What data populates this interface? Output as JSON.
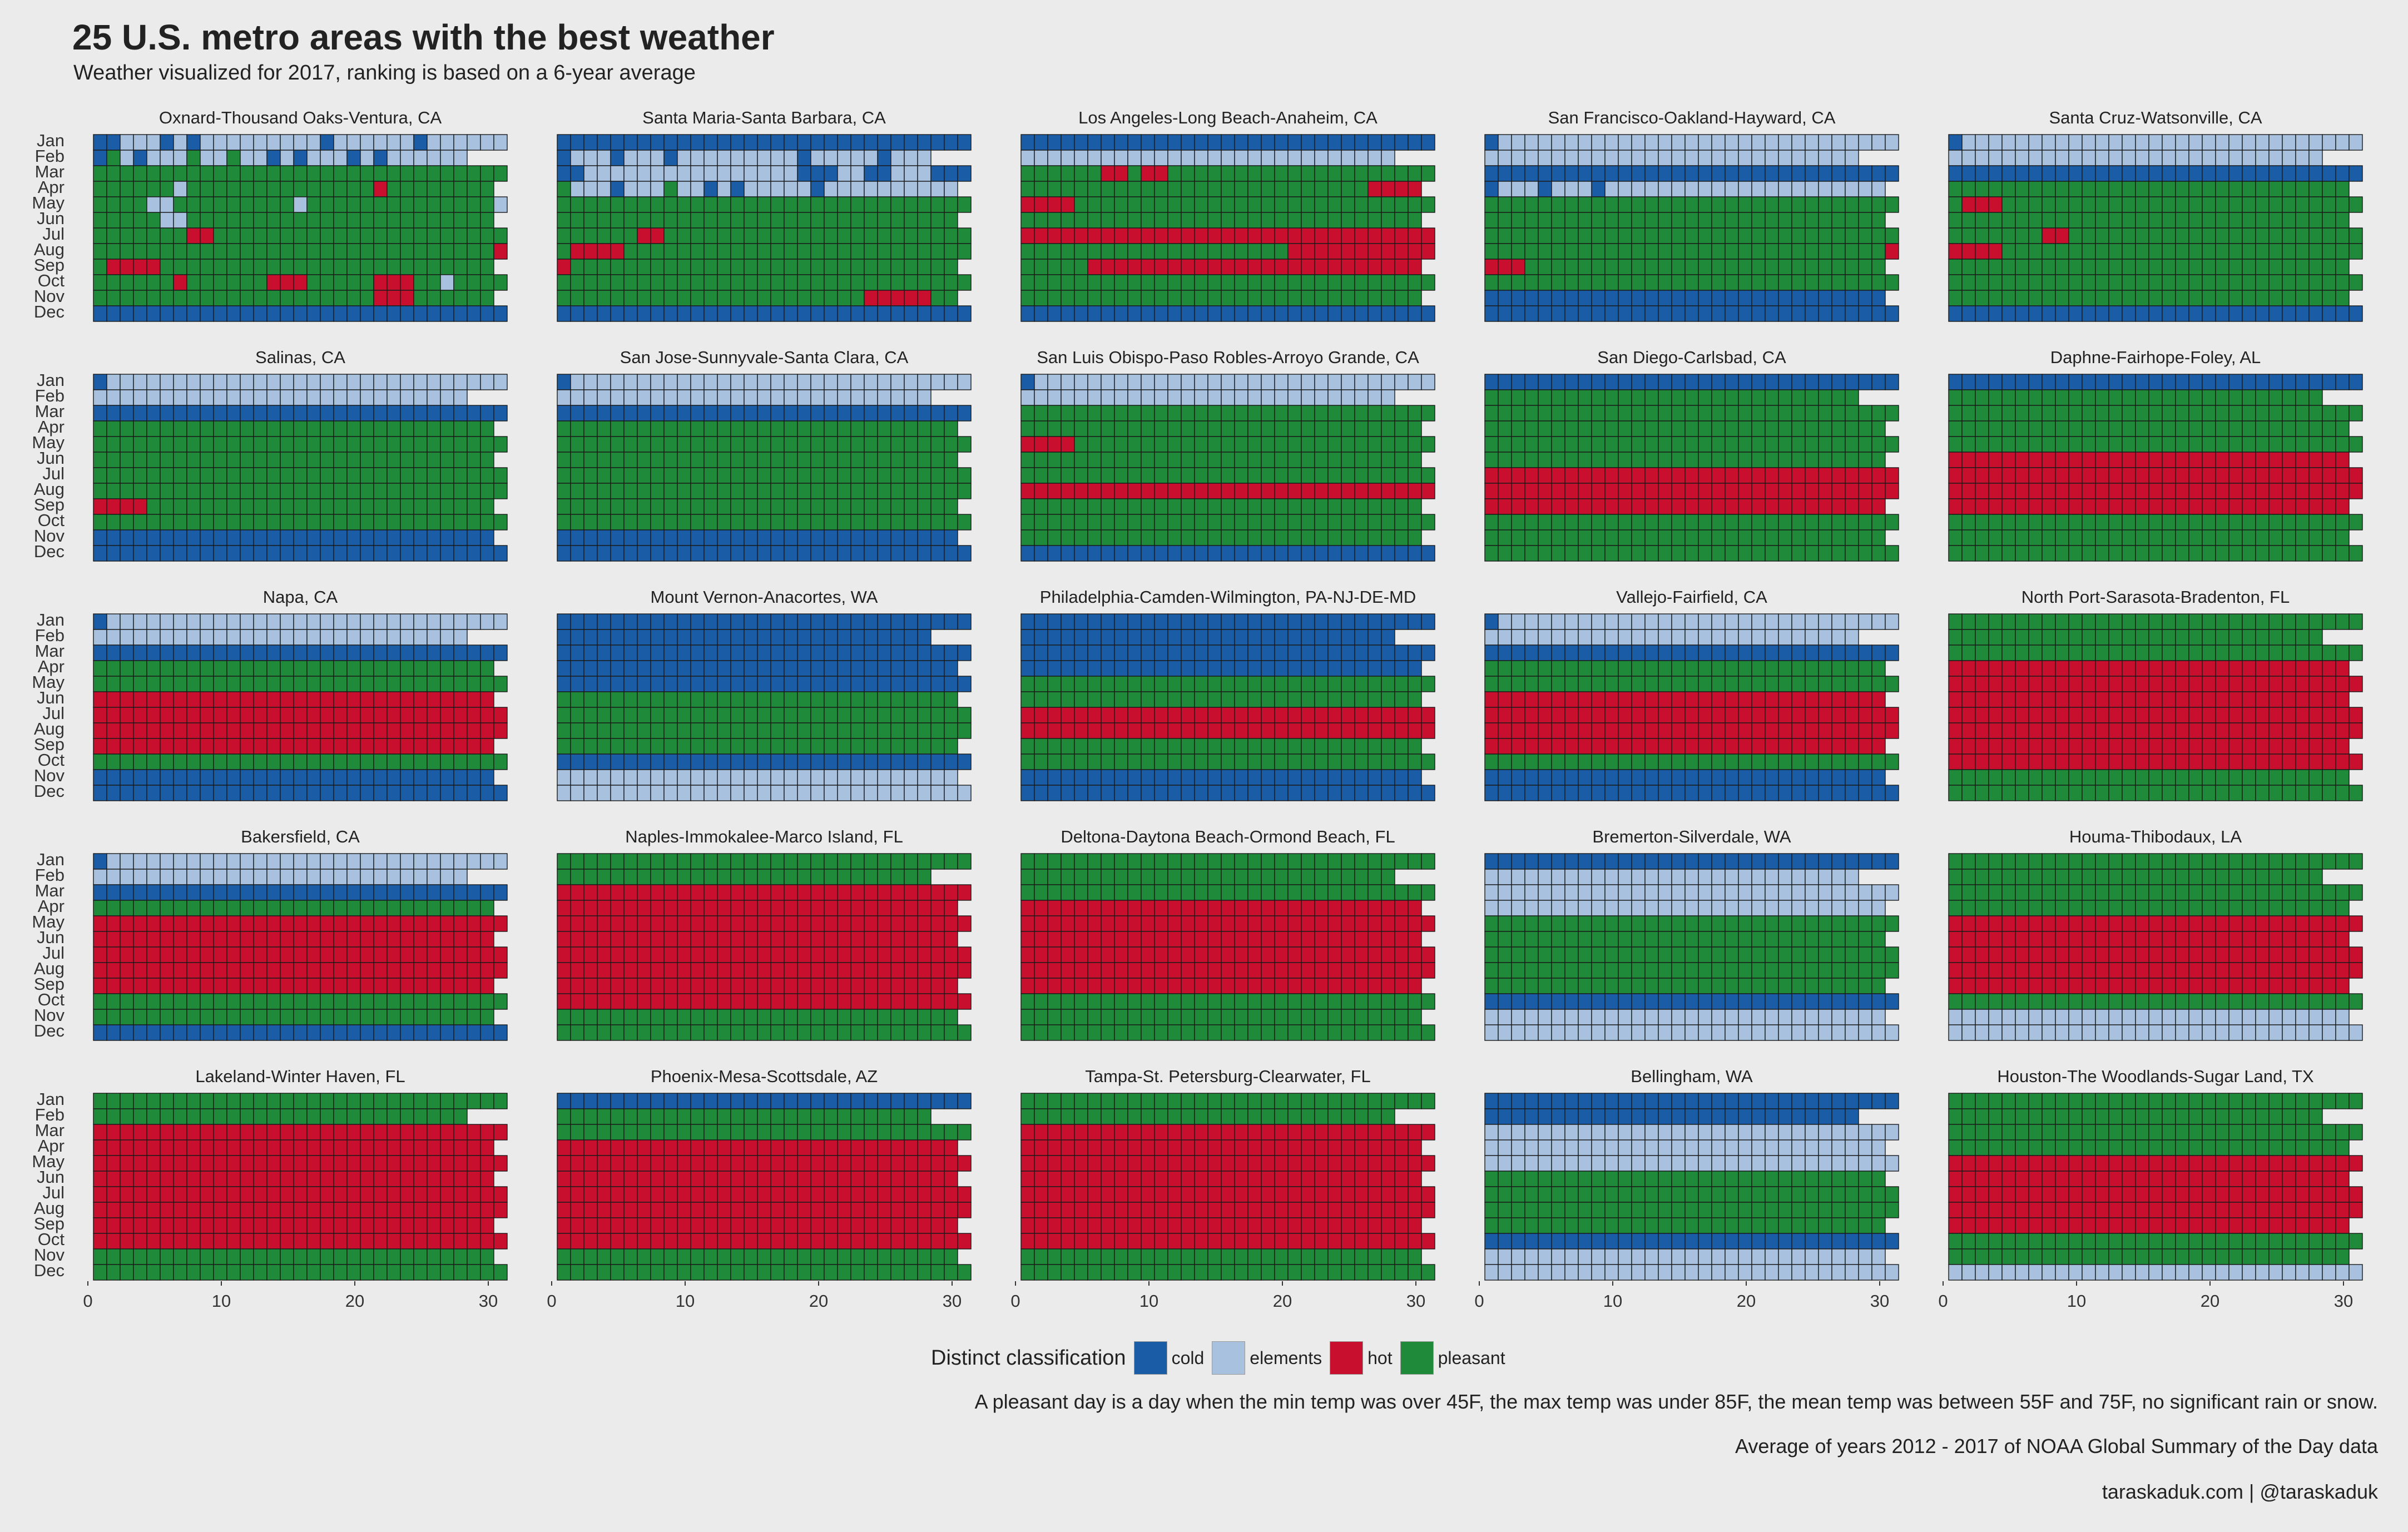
{
  "title": "25 U.S. metro areas with the best weather",
  "subtitle": "Weather visualized for 2017, ranking is based on a 6-year average",
  "legend": {
    "title": "Distinct classification",
    "items": [
      {
        "label": "cold",
        "color": "#1a5da6"
      },
      {
        "label": "elements",
        "color": "#a8c1df"
      },
      {
        "label": "hot",
        "color": "#c8102e"
      },
      {
        "label": "pleasant",
        "color": "#1f8a3a"
      }
    ]
  },
  "caption_lines": [
    "A pleasant day is a day when the min temp was over 45F, the max temp was under 85F, the mean temp was between 55F and 75F, no significant rain or snow.",
    "Average of years 2012 - 2017 of NOAA Global Summary of the Day data",
    "taraskaduk.com | @taraskaduk"
  ],
  "chart_data": {
    "type": "heatmap",
    "title": "25 U.S. metro areas with the best weather",
    "subtitle": "Weather visualized for 2017, ranking is based on a 6-year average",
    "x_ticks": [
      0,
      10,
      20,
      30
    ],
    "xlim": [
      0,
      31
    ],
    "months": [
      "Jan",
      "Feb",
      "Mar",
      "Apr",
      "May",
      "Jun",
      "Jul",
      "Aug",
      "Sep",
      "Oct",
      "Nov",
      "Dec"
    ],
    "month_lengths": [
      31,
      28,
      31,
      30,
      31,
      30,
      31,
      31,
      30,
      31,
      30,
      31
    ],
    "class_codes": {
      "C": "cold",
      "E": "elements",
      "H": "hot",
      "P": "pleasant"
    },
    "panels": [
      {
        "name": "Oxnard-Thousand Oaks-Ventura, CA",
        "days": [
          "CCEEECECEEEEEEEEECEEEEEECEEEEEE",
          "CPECEEEPEEPEECECEEECECEEEEEEE",
          "PPPPPPPPPPPPPPPPPPPPPPPPPPPPPPP",
          "PPPPPPEPPPPPPPPPPPPPPHPPPPPPPPP",
          "PPPPEEPPPPPPPPPEPPPPPPPPPPPPPPE",
          "PPPPPEEPPPPPPPPPPPPPPPPPPPPPPPP",
          "PPPPPPPHHPPPPPPPPPPPPPPPPPPPPPP",
          "PPPPPPPPPPPPPPPPPPPPPPPPPPPPPPH",
          "PHHHHPPPPPPPPPPPPPPPPPPPPPPPPPP",
          "PPPPPPHPPPPPPHHHPPPPPHHHPPEPPPP",
          "PPPPPPPPPPPPPPPPPPPPPHHHPPPPPPP",
          "CCCCCCCCCCCCCCCCCCCCCCCCCCCCCCC"
        ]
      },
      {
        "name": "Santa Maria-Santa Barbara, CA",
        "days": [
          "CCCCCCCCCCCCCCCCCCCCCCCCCCCCCCC",
          "CEEECEEECEEEEEEEEECEEEEECEEEEEE",
          "CCEEEEEEEEEEEEEEEECCCEECCEEECCC",
          "PEEECEEEPEECECEEEEECEEEEEEEEEEE",
          "PPPPPPPPPPPPPPPPPPPPPPPPPPPPPPP",
          "PPPPPPPPPPPPPPPPPPPPPPPPPPPPPPP",
          "PPPPPPHHPPPPPPPPPPPPPPPPPPPPPPP",
          "PHHHHPPPPPPPPPPPPPPPPPPPPPPPPPP",
          "HPPPPPPPPPPPPPPPPPPPPPPPPPPPPPP",
          "PPPPPPPPPPPPPPPPPPPPPPPPPPPPPPP",
          "PPPPPPPPPPPPPPPPPPPPPPPHHHHHPPP",
          "CCCCCCCCCCCCCCCCCCCCCCCCCCCCCCC"
        ]
      },
      {
        "name": "Los Angeles-Long Beach-Anaheim, CA",
        "days": [
          "CCCCCCCCCCCCCCCCCCCCCCCCCCCCCCC",
          "EEEEEEEEEEEEEEEEEEEEEEEEEEEEEEE",
          "PPPPPPHHPHHPPPPPPPPPPPPPPPPPPPP",
          "PPPPPPPPPPPPPPPPPPPPPPPPPPHHHHP",
          "HHHHPPPPPPPPPPPPPPPPPPPPPPPPPPP",
          "PPPPPPPPPPPPPPPPPPPPPPPPPPPPPPP",
          "HHHHHHHHHHHHHHHHHHHHHHHHHHHHHHH",
          "PPPPPPPPPPPPPPPPPPPPHHHHHHHHHHH",
          "PPPPPHHHHHHHHHHHHHHHHHHHHHHHHHH",
          "PPPPPPPPPPPPPPPPPPPPPPPPPPPPPPP",
          "PPPPPPPPPPPPPPPPPPPPPPPPPPPPPPP",
          "CCCCCCCCCCCCCCCCCCCCCCCCCCCCCCC"
        ]
      },
      {
        "name": "San Francisco-Oakland-Hayward, CA",
        "days": [
          "CEEEEEEEEEEEEEEEEEEEEEEEEEEEEEE",
          "EEEEEEEEEEEEEEEEEEEEEEEEEEEEE",
          "CCCCCCCCCCCCCCCCCCCCCCCCCCCCCCC",
          "CEEECEEECEEEEEEEEEEEEEEEEEEEEEE",
          "PPPPPPPPPPPPPPPPPPPPPPPPPPPPPPP",
          "PPPPPPPPPPPPPPPPPPPPPPPPPPPPPPP",
          "PPPPPPPPPPPPPPPPPPPPPPPPPPPPPPP",
          "PPPPPPPPPPPPPPPPPPPPPPPPPPPPPPH",
          "HHHPPPPPPPPPPPPPPPPPPPPPPPPPPPP",
          "PPPPPPPPPPPPPPPPPPPPPPPPPPPPPPP",
          "CCCCCCCCCCCCCCCCCCCCCCCCCCCCCCC",
          "CCCCCCCCCCCCCCCCCCCCCCCCCCCCCCC"
        ]
      },
      {
        "name": "Santa Cruz-Watsonville, CA",
        "days": [
          "CEEEEEEEEEEEEEEEEEEEEEEEEEEEEEE",
          "EEEEEEEEEEEEEEEEEEEEEEEEEEEEE",
          "CCCCCCCCCCCCCCCCCCCCCCCCCCCCCCC",
          "PPPPPPPPPPPPPPPPPPPPPPPPPPPPPPP",
          "PHHHPPPPPPPPPPPPPPPPPPPPPPPPPPP",
          "PPPPPPPPPPPPPPPPPPPPPPPPPPPPPPP",
          "PPPPPPPHHPPPPPPPPPPPPPPPPPPPPPP",
          "HHHHPPPPPPPPPPPPPPPPPPPPPPPPPPP",
          "PPPPPPPPPPPPPPPPPPPPPPPPPPPPPPP",
          "PPPPPPPPPPPPPPPPPPPPPPPPPPPPPPP",
          "PPPPPPPPPPPPPPPPPPPPPPPPPPPPPPP",
          "CCCCCCCCCCCCCCCCCCCCCCCCCCCCCCC"
        ]
      },
      {
        "name": "Salinas, CA",
        "days": [
          "CEEEEEEEEEEEEEEEEEEEEEEEEEEEEEE",
          "EEEEEEEEEEEEEEEEEEEEEEEEEEEEE",
          "CCCCCCCCCCCCCCCCCCCCCCCCCCCCCCC",
          "PPPPPPPPPPPPPPPPPPPPPPPPPPPPPPP",
          "PPPPPPPPPPPPPPPPPPPPPPPPPPPPPPP",
          "PPPPPPPPPPPPPPPPPPPPPPPPPPPPPPP",
          "PPPPPPPPPPPPPPPPPPPPPPPPPPPPPPP",
          "PPPPPPPPPPPPPPPPPPPPPPPPPPPPPPP",
          "HHHHPPPPPPPPPPPPPPPPPPPPPPPPPPP",
          "PPPPPPPPPPPPPPPPPPPPPPPPPPPPPPP",
          "CCCCCCCCCCCCCCCCCCCCCCCCCCCCCCC",
          "CCCCCCCCCCCCCCCCCCCCCCCCCCCCCCC"
        ]
      },
      {
        "name": "San Jose-Sunnyvale-Santa Clara, CA",
        "days": [
          "CEEEEEEEEEEEEEEEEEEEEEEEEEEEEEE",
          "EEEEEEEEEEEEEEEEEEEEEEEEEEEEE",
          "CCCCCCCCCCCCCCCCCCCCCCCCCCCCCCC",
          "PPPPPPPPPPPPPPPPPPPPPPPPPPPPPPP",
          "PPPPPPPPPPPPPPPPPPPPPPPPPPPPPPP",
          "PPPPPPPPPPPPPPPPPPPPPPPPPPPPPPP",
          "PPPPPPPPPPPPPPPPPPPPPPPPPPPPPPP",
          "PPPPPPPPPPPPPPPPPPPPPPPPPPPPPPP",
          "PPPPPPPPPPPPPPPPPPPPPPPPPPPPPPP",
          "PPPPPPPPPPPPPPPPPPPPPPPPPPPPPPP",
          "CCCCCCCCCCCCCCCCCCCCCCCCCCCCCCC",
          "CCCCCCCCCCCCCCCCCCCCCCCCCCCCCCC"
        ]
      },
      {
        "name": "San Luis Obispo-Paso Robles-Arroyo Grande, CA",
        "days": [
          "CEEEEEEEEEEEEEEEEEEEEEEEEEEEEEE",
          "EEEEEEEEEEEEEEEEEEEEEEEEEEEEE",
          "PPPPPPPPPPPPPPPPPPPPPPPPPPPPPPP",
          "PPPPPPPPPPPPPPPPPPPPPPPPPPPPPPP",
          "HHHHPPPPPPPPPPPPPPPPPPPPPPPPPPP",
          "PPPPPPPPPPPPPPPPPPPPPPPPPPPPPPP",
          "PPPPPPPPPPPPPPPPPPPPPPPPPPPPPPP",
          "HHHHHHHHHHHHHHHHHHHHHHHHHHHHHHH",
          "PPPPPPPPPPPPPPPPPPPPPPPPPPPPPPP",
          "PPPPPPPPPPPPPPPPPPPPPPPPPPPPPPP",
          "PPPPPPPPPPPPPPPPPPPPPPPPPPPPPPP",
          "CCCCCCCCCCCCCCCCCCCCCCCCCCCCCCC"
        ]
      },
      {
        "name": "San Diego-Carlsbad, CA",
        "days": [
          "CCCCCCCCCCCCCCCCCCCCCCCCCCCCCCC",
          "PPPPPPPPPPPPPPPPPPPPPPPPPPPPP",
          "PPPPPPPPPPPPPPPPPPPPPPPPPPPPPPP",
          "PPPPPPPPPPPPPPPPPPPPPPPPPPPPPPP",
          "PPPPPPPPPPPPPPPPPPPPPPPPPPPPPPP",
          "PPPPPPPPPPPPPPPPPPPPPPPPPPPPPPP",
          "HHHHHHHHHHHHHHHHHHHHHHHHHHHHHHH",
          "HHHHHHHHHHHHHHHHHHHHHHHHHHHHHHH",
          "HHHHHHHHHHHHHHHHHHHHHHHHHHHHHHH",
          "PPPPPPPPPPPPPPPPPPPPPPPPPPPPPPP",
          "PPPPPPPPPPPPPPPPPPPPPPPPPPPPPPP",
          "PPPPPPPPPPPPPPPPPPPPPPPPPPPPPPP"
        ]
      },
      {
        "name": "Daphne-Fairhope-Foley, AL",
        "days": [
          "CCCCCCCCCCCCCCCCCCCCCCCCCCCCCCC",
          "PPPPPPPPPPPPPPPPPPPPPPPPPPPPP",
          "PPPPPPPPPPPPPPPPPPPPPPPPPPPPPPP",
          "PPPPPPPPPPPPPPPPPPPPPPPPPPPPPPP",
          "PPPPPPPPPPPPPPPPPPPPPPPPPPPPPPP",
          "HHHHHHHHHHHHHHHHHHHHHHHHHHHHHHH",
          "HHHHHHHHHHHHHHHHHHHHHHHHHHHHHHH",
          "HHHHHHHHHHHHHHHHHHHHHHHHHHHHHHH",
          "HHHHHHHHHHHHHHHHHHHHHHHHHHHHHHH",
          "PPPPPPPPPPPPPPPPPPPPPPPPPPPPPPP",
          "PPPPPPPPPPPPPPPPPPPPPPPPPPPPPPP",
          "PPPPPPPPPPPPPPPPPPPPPPPPPPPPPPP"
        ]
      },
      {
        "name": "Napa, CA",
        "days": [
          "CEEEEEEEEEEEEEEEEEEEEEEEEEEEEEE",
          "EEEEEEEEEEEEEEEEEEEEEEEEEEEEE",
          "CCCCCCCCCCCCCCCCCCCCCCCCCCCCCCC",
          "PPPPPPPPPPPPPPPPPPPPPPPPPPPPPPP",
          "PPPPPPPPPPPPPPPPPPPPPPPPPPPPPPP",
          "HHHHHHHHHHHHHHHHHHHHHHHHHHHHHHH",
          "HHHHHHHHHHHHHHHHHHHHHHHHHHHHHHH",
          "HHHHHHHHHHHHHHHHHHHHHHHHHHHHHHH",
          "HHHHHHHHHHHHHHHHHHHHHHHHHHHHHHH",
          "PPPPPPPPPPPPPPPPPPPPPPPPPPPPPPP",
          "CCCCCCCCCCCCCCCCCCCCCCCCCCCCCCC",
          "CCCCCCCCCCCCCCCCCCCCCCCCCCCCCCC"
        ]
      },
      {
        "name": "Mount Vernon-Anacortes, WA",
        "days": [
          "CCCCCCCCCCCCCCCCCCCCCCCCCCCCCCC",
          "CCCCCCCCCCCCCCCCCCCCCCCCCCCCC",
          "CCCCCCCCCCCCCCCCCCCCCCCCCCCCCCC",
          "CCCCCCCCCCCCCCCCCCCCCCCCCCCCCCC",
          "CCCCCCCCCCCCCCCCCCCCCCCCCCCCCCC",
          "PPPPPPPPPPPPPPPPPPPPPPPPPPPPPPP",
          "PPPPPPPPPPPPPPPPPPPPPPPPPPPPPPP",
          "PPPPPPPPPPPPPPPPPPPPPPPPPPPPPPP",
          "PPPPPPPPPPPPPPPPPPPPPPPPPPPPPPP",
          "CCCCCCCCCCCCCCCCCCCCCCCCCCCCCCC",
          "EEEEEEEEEEEEEEEEEEEEEEEEEEEEEEE",
          "EEEEEEEEEEEEEEEEEEEEEEEEEEEEEEE"
        ]
      },
      {
        "name": "Philadelphia-Camden-Wilmington, PA-NJ-DE-MD",
        "days": [
          "CCCCCCCCCCCCCCCCCCCCCCCCCCCCCCC",
          "CCCCCCCCCCCCCCCCCCCCCCCCCCCCC",
          "CCCCCCCCCCCCCCCCCCCCCCCCCCCCCCC",
          "CCCCCCCCCCCCCCCCCCCCCCCCCCCCCCC",
          "PPPPPPPPPPPPPPPPPPPPPPPPPPPPPPP",
          "PPPPPPPPPPPPPPPPPPPPPPPPPPPPPPP",
          "HHHHHHHHHHHHHHHHHHHHHHHHHHHHHHH",
          "HHHHHHHHHHHHHHHHHHHHHHHHHHHHHHH",
          "PPPPPPPPPPPPPPPPPPPPPPPPPPPPPPP",
          "PPPPPPPPPPPPPPPPPPPPPPPPPPPPPPP",
          "CCCCCCCCCCCCCCCCCCCCCCCCCCCCCCC",
          "CCCCCCCCCCCCCCCCCCCCCCCCCCCCCCC"
        ]
      },
      {
        "name": "Vallejo-Fairfield, CA",
        "days": [
          "CEEEEEEEEEEEEEEEEEEEEEEEEEEEEEE",
          "EEEEEEEEEEEEEEEEEEEEEEEEEEEEE",
          "CCCCCCCCCCCCCCCCCCCCCCCCCCCCCCC",
          "PPPPPPPPPPPPPPPPPPPPPPPPPPPPPPP",
          "PPPPPPPPPPPPPPPPPPPPPPPPPPPPPPP",
          "HHHHHHHHHHHHHHHHHHHHHHHHHHHHHHH",
          "HHHHHHHHHHHHHHHHHHHHHHHHHHHHHHH",
          "HHHHHHHHHHHHHHHHHHHHHHHHHHHHHHH",
          "HHHHHHHHHHHHHHHHHHHHHHHHHHHHHHH",
          "PPPPPPPPPPPPPPPPPPPPPPPPPPPPPPP",
          "CCCCCCCCCCCCCCCCCCCCCCCCCCCCCCC",
          "CCCCCCCCCCCCCCCCCCCCCCCCCCCCCCC"
        ]
      },
      {
        "name": "North Port-Sarasota-Bradenton, FL",
        "days": [
          "PPPPPPPPPPPPPPPPPPPPPPPPPPPPPPP",
          "PPPPPPPPPPPPPPPPPPPPPPPPPPPPP",
          "PPPPPPPPPPPPPPPPPPPPPPPPPPPPPPP",
          "HHHHHHHHHHHHHHHHHHHHHHHHHHHHHHH",
          "HHHHHHHHHHHHHHHHHHHHHHHHHHHHHHH",
          "HHHHHHHHHHHHHHHHHHHHHHHHHHHHHHH",
          "HHHHHHHHHHHHHHHHHHHHHHHHHHHHHHH",
          "HHHHHHHHHHHHHHHHHHHHHHHHHHHHHHH",
          "HHHHHHHHHHHHHHHHHHHHHHHHHHHHHHH",
          "HHHHHHHHHHHHHHHHHHHHHHHHHHHHHHH",
          "PPPPPPPPPPPPPPPPPPPPPPPPPPPPPPP",
          "PPPPPPPPPPPPPPPPPPPPPPPPPPPPPPP"
        ]
      },
      {
        "name": "Bakersfield, CA",
        "days": [
          "CEEEEEEEEEEEEEEEEEEEEEEEEEEEEEE",
          "EEEEEEEEEEEEEEEEEEEEEEEEEEEEE",
          "CCCCCCCCCCCCCCCCCCCCCCCCCCCCCCC",
          "PPPPPPPPPPPPPPPPPPPPPPPPPPPPPPP",
          "HHHHHHHHHHHHHHHHHHHHHHHHHHHHHHH",
          "HHHHHHHHHHHHHHHHHHHHHHHHHHHHHHH",
          "HHHHHHHHHHHHHHHHHHHHHHHHHHHHHHH",
          "HHHHHHHHHHHHHHHHHHHHHHHHHHHHHHH",
          "HHHHHHHHHHHHHHHHHHHHHHHHHHHHHHH",
          "PPPPPPPPPPPPPPPPPPPPPPPPPPPPPPP",
          "PPPPPPPPPPPPPPPPPPPPPPPPPPPPPPP",
          "CCCCCCCCCCCCCCCCCCCCCCCCCCCCCCC"
        ]
      },
      {
        "name": "Naples-Immokalee-Marco Island, FL",
        "days": [
          "PPPPPPPPPPPPPPPPPPPPPPPPPPPPPPP",
          "PPPPPPPPPPPPPPPPPPPPPPPPPPPPP",
          "HHHHHHHHHHHHHHHHHHHHHHHHHHHHHHH",
          "HHHHHHHHHHHHHHHHHHHHHHHHHHHHHHH",
          "HHHHHHHHHHHHHHHHHHHHHHHHHHHHHHH",
          "HHHHHHHHHHHHHHHHHHHHHHHHHHHHHHH",
          "HHHHHHHHHHHHHHHHHHHHHHHHHHHHHHH",
          "HHHHHHHHHHHHHHHHHHHHHHHHHHHHHHH",
          "HHHHHHHHHHHHHHHHHHHHHHHHHHHHHHH",
          "HHHHHHHHHHHHHHHHHHHHHHHHHHHHHHH",
          "PPPPPPPPPPPPPPPPPPPPPPPPPPPPPPP",
          "PPPPPPPPPPPPPPPPPPPPPPPPPPPPPPP"
        ]
      },
      {
        "name": "Deltona-Daytona Beach-Ormond Beach, FL",
        "days": [
          "PPPPPPPPPPPPPPPPPPPPPPPPPPPPPPP",
          "PPPPPPPPPPPPPPPPPPPPPPPPPPPPP",
          "PPPPPPPPPPPPPPPPPPPPPPPPPPPPPPP",
          "HHHHHHHHHHHHHHHHHHHHHHHHHHHHHHH",
          "HHHHHHHHHHHHHHHHHHHHHHHHHHHHHHH",
          "HHHHHHHHHHHHHHHHHHHHHHHHHHHHHHH",
          "HHHHHHHHHHHHHHHHHHHHHHHHHHHHHHH",
          "HHHHHHHHHHHHHHHHHHHHHHHHHHHHHHH",
          "HHHHHHHHHHHHHHHHHHHHHHHHHHHHHHH",
          "PPPPPPPPPPPPPPPPPPPPPPPPPPPPPPP",
          "PPPPPPPPPPPPPPPPPPPPPPPPPPPPPPP",
          "PPPPPPPPPPPPPPPPPPPPPPPPPPPPPPP"
        ]
      },
      {
        "name": "Bremerton-Silverdale, WA",
        "days": [
          "CCCCCCCCCCCCCCCCCCCCCCCCCCCCCCC",
          "EEEEEEEEEEEEEEEEEEEEEEEEEEEEE",
          "EEEEEEEEEEEEEEEEEEEEEEEEEEEEEEE",
          "EEEEEEEEEEEEEEEEEEEEEEEEEEEEEEE",
          "PPPPPPPPPPPPPPPPPPPPPPPPPPPPPPP",
          "PPPPPPPPPPPPPPPPPPPPPPPPPPPPPPP",
          "PPPPPPPPPPPPPPPPPPPPPPPPPPPPPPP",
          "PPPPPPPPPPPPPPPPPPPPPPPPPPPPPPP",
          "PPPPPPPPPPPPPPPPPPPPPPPPPPPPPPP",
          "CCCCCCCCCCCCCCCCCCCCCCCCCCCCCCC",
          "EEEEEEEEEEEEEEEEEEEEEEEEEEEEEEE",
          "EEEEEEEEEEEEEEEEEEEEEEEEEEEEEEE"
        ]
      },
      {
        "name": "Houma-Thibodaux, LA",
        "days": [
          "PPPPPPPPPPPPPPPPPPPPPPPPPPPPPPP",
          "PPPPPPPPPPPPPPPPPPPPPPPPPPPPP",
          "PPPPPPPPPPPPPPPPPPPPPPPPPPPPPPP",
          "PPPPPPPPPPPPPPPPPPPPPPPPPPPPPPP",
          "HHHHHHHHHHHHHHHHHHHHHHHHHHHHHHH",
          "HHHHHHHHHHHHHHHHHHHHHHHHHHHHHHH",
          "HHHHHHHHHHHHHHHHHHHHHHHHHHHHHHH",
          "HHHHHHHHHHHHHHHHHHHHHHHHHHHHHHH",
          "HHHHHHHHHHHHHHHHHHHHHHHHHHHHHHH",
          "PPPPPPPPPPPPPPPPPPPPPPPPPPPPPPP",
          "EEEEEEEEEEEEEEEEEEEEEEEEEEEEEEE",
          "EEEEEEEEEEEEEEEEEEEEEEEEEEEEEEE"
        ]
      },
      {
        "name": "Lakeland-Winter Haven, FL",
        "days": [
          "PPPPPPPPPPPPPPPPPPPPPPPPPPPPPPP",
          "PPPPPPPPPPPPPPPPPPPPPPPPPPPPP",
          "HHHHHHHHHHHHHHHHHHHHHHHHHHHHHHH",
          "HHHHHHHHHHHHHHHHHHHHHHHHHHHHHHH",
          "HHHHHHHHHHHHHHHHHHHHHHHHHHHHHHH",
          "HHHHHHHHHHHHHHHHHHHHHHHHHHHHHHH",
          "HHHHHHHHHHHHHHHHHHHHHHHHHHHHHHH",
          "HHHHHHHHHHHHHHHHHHHHHHHHHHHHHHH",
          "HHHHHHHHHHHHHHHHHHHHHHHHHHHHHHH",
          "HHHHHHHHHHHHHHHHHHHHHHHHHHHHHHH",
          "PPPPPPPPPPPPPPPPPPPPPPPPPPPPPPP",
          "PPPPPPPPPPPPPPPPPPPPPPPPPPPPPPP"
        ]
      },
      {
        "name": "Phoenix-Mesa-Scottsdale, AZ",
        "days": [
          "CCCCCCCCCCCCCCCCCCCCCCCCCCCCCCC",
          "PPPPPPPPPPPPPPPPPPPPPPPPPPPPP",
          "PPPPPPPPPPPPPPPPPPPPPPPPPPPPPPP",
          "HHHHHHHHHHHHHHHHHHHHHHHHHHHHHHH",
          "HHHHHHHHHHHHHHHHHHHHHHHHHHHHHHH",
          "HHHHHHHHHHHHHHHHHHHHHHHHHHHHHHH",
          "HHHHHHHHHHHHHHHHHHHHHHHHHHHHHHH",
          "HHHHHHHHHHHHHHHHHHHHHHHHHHHHHHH",
          "HHHHHHHHHHHHHHHHHHHHHHHHHHHHHHH",
          "HHHHHHHHHHHHHHHHHHHHHHHHHHHHHHH",
          "PPPPPPPPPPPPPPPPPPPPPPPPPPPPPPP",
          "PPPPPPPPPPPPPPPPPPPPPPPPPPPPPPP"
        ]
      },
      {
        "name": "Tampa-St. Petersburg-Clearwater, FL",
        "days": [
          "PPPPPPPPPPPPPPPPPPPPPPPPPPPPPPP",
          "PPPPPPPPPPPPPPPPPPPPPPPPPPPPP",
          "HHHHHHHHHHHHHHHHHHHHHHHHHHHHHHH",
          "HHHHHHHHHHHHHHHHHHHHHHHHHHHHHHH",
          "HHHHHHHHHHHHHHHHHHHHHHHHHHHHHHH",
          "HHHHHHHHHHHHHHHHHHHHHHHHHHHHHHH",
          "HHHHHHHHHHHHHHHHHHHHHHHHHHHHHHH",
          "HHHHHHHHHHHHHHHHHHHHHHHHHHHHHHH",
          "HHHHHHHHHHHHHHHHHHHHHHHHHHHHHHH",
          "HHHHHHHHHHHHHHHHHHHHHHHHHHHHHHH",
          "PPPPPPPPPPPPPPPPPPPPPPPPPPPPPPP",
          "PPPPPPPPPPPPPPPPPPPPPPPPPPPPPPP"
        ]
      },
      {
        "name": "Bellingham, WA",
        "days": [
          "CCCCCCCCCCCCCCCCCCCCCCCCCCCCCCC",
          "CCCCCCCCCCCCCCCCCCCCCCCCCCCCC",
          "EEEEEEEEEEEEEEEEEEEEEEEEEEEEEEE",
          "EEEEEEEEEEEEEEEEEEEEEEEEEEEEEEE",
          "EEEEEEEEEEEEEEEEEEEEEEEEEEEEEEE",
          "PPPPPPPPPPPPPPPPPPPPPPPPPPPPPPP",
          "PPPPPPPPPPPPPPPPPPPPPPPPPPPPPPP",
          "PPPPPPPPPPPPPPPPPPPPPPPPPPPPPPP",
          "PPPPPPPPPPPPPPPPPPPPPPPPPPPPPPP",
          "CCCCCCCCCCCCCCCCCCCCCCCCCCCCCCC",
          "EEEEEEEEEEEEEEEEEEEEEEEEEEEEEEE",
          "EEEEEEEEEEEEEEEEEEEEEEEEEEEEEEE"
        ]
      },
      {
        "name": "Houston-The Woodlands-Sugar Land, TX",
        "days": [
          "PPPPPPPPPPPPPPPPPPPPPPPPPPPPPPP",
          "PPPPPPPPPPPPPPPPPPPPPPPPPPPPP",
          "PPPPPPPPPPPPPPPPPPPPPPPPPPPPPPP",
          "PPPPPPPPPPPPPPPPPPPPPPPPPPPPPPP",
          "HHHHHHHHHHHHHHHHHHHHHHHHHHHHHHH",
          "HHHHHHHHHHHHHHHHHHHHHHHHHHHHHHH",
          "HHHHHHHHHHHHHHHHHHHHHHHHHHHHHHH",
          "HHHHHHHHHHHHHHHHHHHHHHHHHHHHHHH",
          "HHHHHHHHHHHHHHHHHHHHHHHHHHHHHHH",
          "PPPPPPPPPPPPPPPPPPPPPPPPPPPPPPP",
          "PPPPPPPPPPPPPPPPPPPPPPPPPPPPPPP",
          "EEEEEEEEEEEEEEEEEEEEEEEEEEEEEEE"
        ]
      }
    ]
  }
}
